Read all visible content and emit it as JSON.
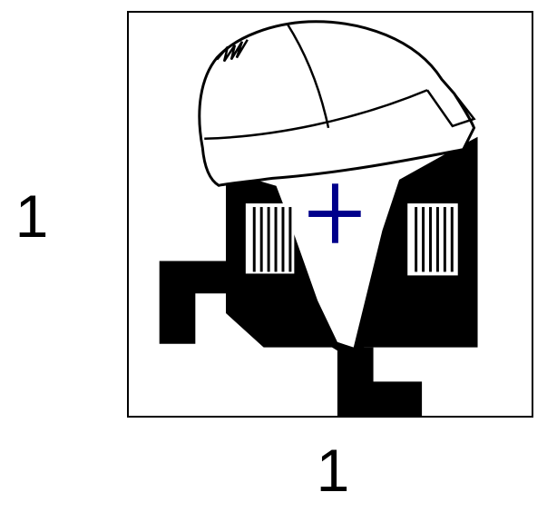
{
  "labels": {
    "y_axis": "1",
    "x_axis": "1"
  },
  "colors": {
    "ink": "#000000",
    "background": "#ffffff",
    "marker": "#00008b"
  },
  "figure": {
    "subject": "icon-figure-with-cap",
    "marker_symbol": "cross"
  }
}
